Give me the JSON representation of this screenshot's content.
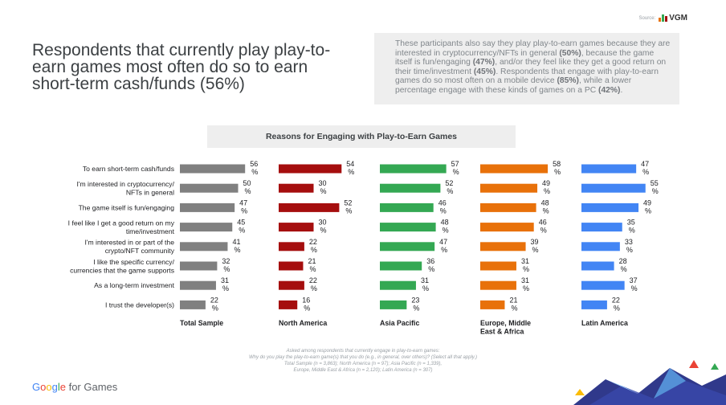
{
  "source": {
    "label": "Source:",
    "brand": "VGM"
  },
  "headline": "Respondents that currently play play-to-earn games most often do so to earn short-term cash/funds (56%)",
  "summary": [
    {
      "t": "These participants also say they play play-to-earn games because they are interested in cryptocurrency/NFTs in general ",
      "b": false
    },
    {
      "t": "(50%)",
      "b": true
    },
    {
      "t": ", because the game itself is fun/engaging ",
      "b": false
    },
    {
      "t": "(47%)",
      "b": true
    },
    {
      "t": ", and/or they feel like they get a good return on their time/investment ",
      "b": false
    },
    {
      "t": "(45%)",
      "b": true
    },
    {
      "t": ". Respondents that engage with play-to-earn games do so most often on a mobile device ",
      "b": false
    },
    {
      "t": "(85%)",
      "b": true
    },
    {
      "t": ", while a lower percentage engage with these kinds of games on a PC ",
      "b": false
    },
    {
      "t": "(42%)",
      "b": true
    },
    {
      "t": ".",
      "b": false
    }
  ],
  "chart_data": {
    "type": "bar",
    "orientation": "horizontal",
    "title": "Reasons for Engaging with Play-to-Earn Games",
    "categories": [
      "To earn short-term cash/funds",
      "I'm interested in cryptocurrency/\nNFTs in general",
      "The game itself is fun/engaging",
      "I feel like I get a good return on my\ntime/investment",
      "I'm interested in or part of the\ncrypto/NFT community",
      "I like the specific currency/\ncurrencies that the game supports",
      "As a long-term investment",
      "I trust the developer(s)"
    ],
    "unit": "%",
    "series": [
      {
        "name": "Total Sample",
        "color": "#808080",
        "values": [
          56,
          50,
          47,
          45,
          41,
          32,
          31,
          22
        ]
      },
      {
        "name": "North America",
        "color": "#a50e0e",
        "values": [
          54,
          30,
          52,
          30,
          22,
          21,
          22,
          16
        ]
      },
      {
        "name": "Asia Pacific",
        "color": "#34a853",
        "values": [
          57,
          52,
          46,
          48,
          47,
          36,
          31,
          23
        ]
      },
      {
        "name": "Europe, Middle\nEast & Africa",
        "color": "#e8710a",
        "values": [
          58,
          49,
          48,
          46,
          39,
          31,
          31,
          21
        ]
      },
      {
        "name": "Latin America",
        "color": "#4285f4",
        "values": [
          47,
          55,
          49,
          35,
          33,
          28,
          37,
          22
        ]
      }
    ],
    "xlim": [
      0,
      60
    ]
  },
  "note": [
    "Asked among respondents that currently engage in play-to-earn games:",
    "Why do you play the play-to-earn game(s) that you do (e.g., in general, over others)? (Select all that apply.)",
    "Total Sample (n = 3,863); North America (n = 97); Asia Pacific (n = 1,339),",
    "Europe, Middle East & Africa (n = 2,120); Latin America (n = 307)"
  ],
  "logo": {
    "brand": "Google",
    "suffix": "for Games"
  }
}
